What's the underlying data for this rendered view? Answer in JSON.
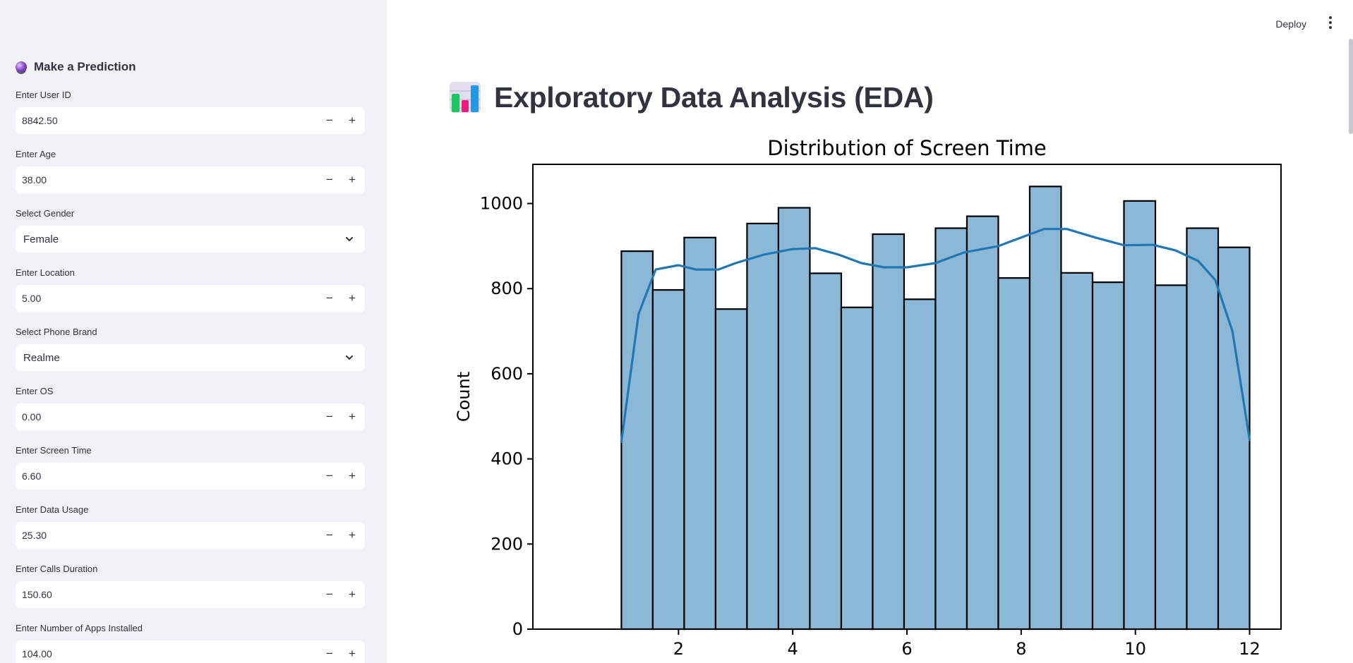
{
  "sidebar": {
    "header": "Make a Prediction",
    "fields": [
      {
        "label": "Enter User ID",
        "type": "number",
        "value": "8842.50"
      },
      {
        "label": "Enter Age",
        "type": "number",
        "value": "38.00"
      },
      {
        "label": "Select Gender",
        "type": "select",
        "value": "Female"
      },
      {
        "label": "Enter Location",
        "type": "number",
        "value": "5.00"
      },
      {
        "label": "Select Phone Brand",
        "type": "select",
        "value": "Realme"
      },
      {
        "label": "Enter OS",
        "type": "number",
        "value": "0.00"
      },
      {
        "label": "Enter Screen Time",
        "type": "number",
        "value": "6.60"
      },
      {
        "label": "Enter Data Usage",
        "type": "number",
        "value": "25.30"
      },
      {
        "label": "Enter Calls Duration",
        "type": "number",
        "value": "150.60"
      },
      {
        "label": "Enter Number of Apps Installed",
        "type": "number",
        "value": "104.00"
      }
    ],
    "minus_label": "−",
    "plus_label": "+"
  },
  "toolbar": {
    "deploy_label": "Deploy"
  },
  "main": {
    "title": "Exploratory Data Analysis (EDA)"
  },
  "chart_data": {
    "type": "bar",
    "title": "Distribution of Screen Time",
    "xlabel": "",
    "ylabel": "Count",
    "bin_start": 1.0,
    "bin_width": 0.55,
    "values": [
      888,
      797,
      920,
      752,
      953,
      990,
      836,
      756,
      928,
      775,
      942,
      970,
      825,
      1040,
      837,
      815,
      1006,
      808,
      942,
      897
    ],
    "kde": [
      [
        1.0,
        440
      ],
      [
        1.3,
        740
      ],
      [
        1.6,
        845
      ],
      [
        2.0,
        855
      ],
      [
        2.3,
        845
      ],
      [
        2.7,
        845
      ],
      [
        3.0,
        860
      ],
      [
        3.5,
        880
      ],
      [
        4.0,
        893
      ],
      [
        4.4,
        895
      ],
      [
        4.8,
        880
      ],
      [
        5.2,
        860
      ],
      [
        5.6,
        850
      ],
      [
        6.0,
        850
      ],
      [
        6.5,
        860
      ],
      [
        7.0,
        885
      ],
      [
        7.6,
        900
      ],
      [
        8.0,
        920
      ],
      [
        8.4,
        940
      ],
      [
        8.8,
        940
      ],
      [
        9.3,
        920
      ],
      [
        9.8,
        902
      ],
      [
        10.3,
        903
      ],
      [
        10.7,
        890
      ],
      [
        11.1,
        865
      ],
      [
        11.4,
        820
      ],
      [
        11.7,
        700
      ],
      [
        12.0,
        445
      ]
    ],
    "xticks": [
      2,
      4,
      6,
      8,
      10,
      12
    ],
    "yticks": [
      0,
      200,
      400,
      600,
      800,
      1000
    ],
    "xlim": [
      -0.55,
      12.55
    ],
    "ylim": [
      0,
      1092
    ],
    "bar_color": "#8cb8d8",
    "line_color": "#1f77b4"
  }
}
